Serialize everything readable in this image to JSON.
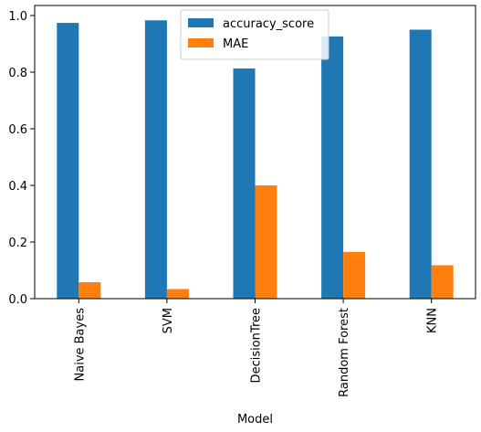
{
  "chart_data": {
    "type": "bar",
    "categories": [
      "Naive Bayes",
      "SVM",
      "DecisionTree",
      "Random Forest",
      "KNN"
    ],
    "series": [
      {
        "name": "accuracy_score",
        "color": "#1f77b4",
        "values": [
          0.974,
          0.983,
          0.813,
          0.926,
          0.95
        ]
      },
      {
        "name": "MAE",
        "color": "#ff7f0e",
        "values": [
          0.058,
          0.034,
          0.4,
          0.165,
          0.118
        ]
      }
    ],
    "xlabel": "Model",
    "ylabel": "",
    "ylim": [
      0,
      1.0
    ],
    "yticks": [
      0.0,
      0.2,
      0.4,
      0.6,
      0.8,
      1.0
    ],
    "ytick_labels": [
      "0.0",
      "0.2",
      "0.4",
      "0.6",
      "0.8",
      "1.0"
    ],
    "grid": false,
    "legend_position": "top-center"
  }
}
